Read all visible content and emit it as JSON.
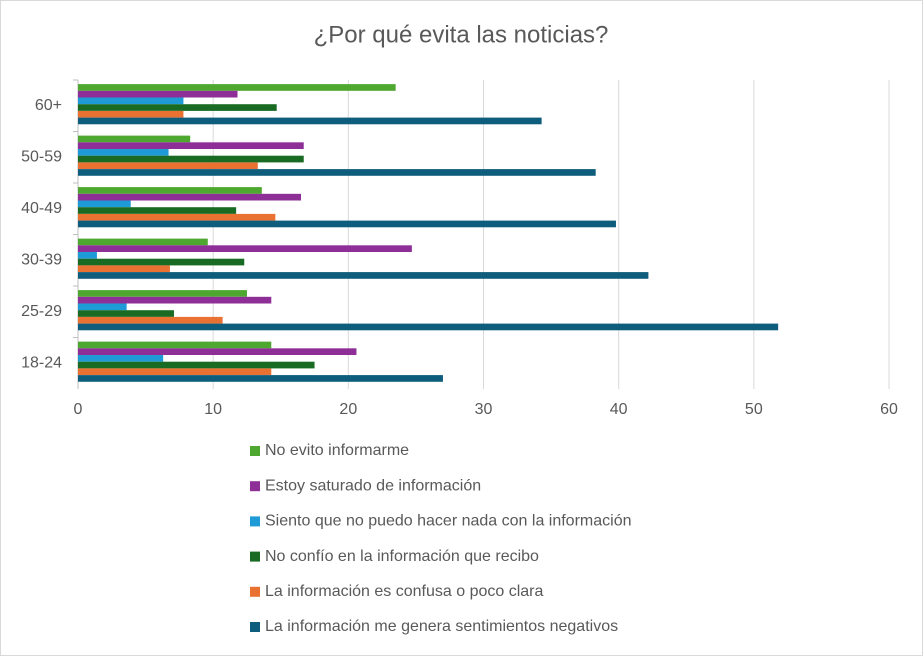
{
  "chart_data": {
    "type": "bar",
    "orientation": "horizontal",
    "title": "¿Por qué evita las noticias?",
    "categories": [
      "18-24",
      "25-29",
      "30-39",
      "40-49",
      "50-59",
      "60+"
    ],
    "series": [
      {
        "name": "No evito informarme",
        "color": "#4ea72e",
        "values": [
          14.3,
          12.5,
          9.6,
          13.6,
          8.3,
          23.5
        ]
      },
      {
        "name": "Estoy saturado de información",
        "color": "#8e2f98",
        "values": [
          20.6,
          14.3,
          24.7,
          16.5,
          16.7,
          11.8
        ]
      },
      {
        "name": "Siento que no puedo hacer nada con la información",
        "color": "#1e9bd7",
        "values": [
          6.3,
          3.6,
          1.4,
          3.9,
          6.7,
          7.8
        ]
      },
      {
        "name": "No confío en la información que recibo",
        "color": "#196b24",
        "values": [
          17.5,
          7.1,
          12.3,
          11.7,
          16.7,
          14.7
        ]
      },
      {
        "name": "La información es confusa o poco clara",
        "color": "#e97132",
        "values": [
          14.3,
          10.7,
          6.8,
          14.6,
          13.3,
          7.8
        ]
      },
      {
        "name": "La información me genera sentimientos negativos",
        "color": "#0f5d7d",
        "values": [
          27.0,
          51.8,
          42.2,
          39.8,
          38.3,
          34.3
        ]
      }
    ],
    "xlim": [
      0,
      60
    ],
    "xticks": [
      0,
      10,
      20,
      30,
      40,
      50,
      60
    ],
    "grid": true,
    "legend": "bottom"
  }
}
